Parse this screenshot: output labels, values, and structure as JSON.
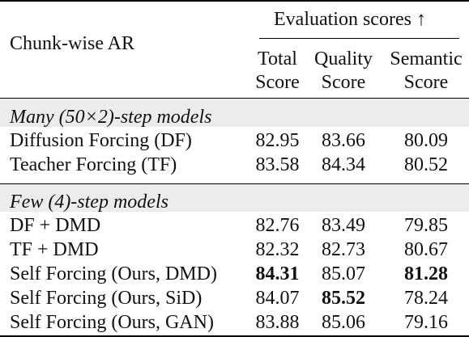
{
  "header": {
    "row_label": "Chunk-wise AR",
    "group_label": "Evaluation scores ↑",
    "col1": [
      "Total",
      "Score"
    ],
    "col2": [
      "Quality",
      "Score"
    ],
    "col3": [
      "Semantic",
      "Score"
    ]
  },
  "sections": [
    {
      "title": "Many (50×2)-step models",
      "rows": [
        {
          "name": "Diffusion Forcing (DF)",
          "total": "82.95",
          "quality": "83.66",
          "semantic": "80.09"
        },
        {
          "name": "Teacher Forcing (TF)",
          "total": "83.58",
          "quality": "84.34",
          "semantic": "80.52"
        }
      ]
    },
    {
      "title": "Few (4)-step models",
      "rows": [
        {
          "name": "DF + DMD",
          "total": "82.76",
          "quality": "83.49",
          "semantic": "79.85"
        },
        {
          "name": "TF + DMD",
          "total": "82.32",
          "quality": "82.73",
          "semantic": "80.67"
        },
        {
          "name": "Self Forcing (Ours, DMD)",
          "total": "84.31",
          "quality": "85.07",
          "semantic": "81.28"
        },
        {
          "name": "Self Forcing (Ours, SiD)",
          "total": "84.07",
          "quality": "85.52",
          "semantic": "78.24"
        },
        {
          "name": "Self Forcing (Ours, GAN)",
          "total": "83.88",
          "quality": "85.06",
          "semantic": "79.16"
        }
      ]
    }
  ]
}
